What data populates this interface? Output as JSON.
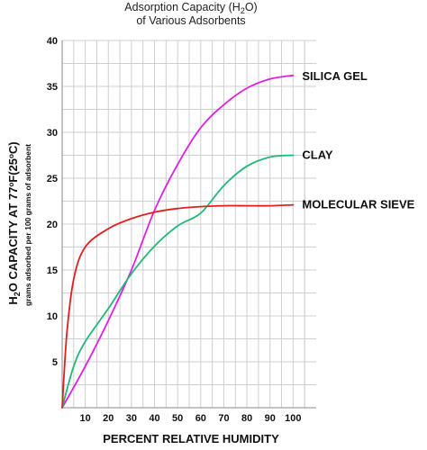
{
  "chart_data": {
    "type": "line",
    "title_line1": "Adsorption Capacity (H",
    "title_sub": "2",
    "title_line1_end": "O)",
    "title_line2": "of Various Adsorbents",
    "xlabel": "PERCENT RELATIVE HUMIDITY",
    "ylabel_part1": "H",
    "ylabel_sub": "2",
    "ylabel_part2": "O CAPACITY AT 77",
    "ylabel_sup": "o",
    "ylabel_part3": "F(25",
    "ylabel_sup2": "o",
    "ylabel_part4": "C)",
    "ylabel_secondary": "grams adsorbed per 100 grams of adsorbent",
    "xlim": [
      0,
      110
    ],
    "ylim": [
      0,
      40
    ],
    "x_ticks": [
      10,
      20,
      30,
      40,
      50,
      60,
      70,
      80,
      90,
      100
    ],
    "y_ticks": [
      5,
      10,
      15,
      20,
      25,
      30,
      35,
      40
    ],
    "grid": true,
    "series": [
      {
        "name": "SILICA GEL",
        "color": "#e020e0",
        "points": [
          [
            0,
            0
          ],
          [
            10,
            4.5
          ],
          [
            20,
            9.5
          ],
          [
            30,
            15
          ],
          [
            40,
            21.5
          ],
          [
            50,
            26.5
          ],
          [
            60,
            30.5
          ],
          [
            70,
            33
          ],
          [
            80,
            34.8
          ],
          [
            90,
            35.8
          ],
          [
            100,
            36.2
          ]
        ]
      },
      {
        "name": "CLAY",
        "color": "#1fb877",
        "points": [
          [
            0,
            0
          ],
          [
            5,
            4.5
          ],
          [
            10,
            7.2
          ],
          [
            20,
            10.8
          ],
          [
            30,
            14.6
          ],
          [
            40,
            17.6
          ],
          [
            50,
            19.8
          ],
          [
            60,
            21.2
          ],
          [
            70,
            24.2
          ],
          [
            80,
            26.3
          ],
          [
            90,
            27.3
          ],
          [
            100,
            27.5
          ]
        ]
      },
      {
        "name": "MOLECULAR SIEVE",
        "color": "#e02020",
        "points": [
          [
            0,
            0
          ],
          [
            2,
            8
          ],
          [
            5,
            14
          ],
          [
            10,
            17.5
          ],
          [
            20,
            19.5
          ],
          [
            30,
            20.6
          ],
          [
            40,
            21.3
          ],
          [
            50,
            21.7
          ],
          [
            60,
            21.9
          ],
          [
            70,
            22
          ],
          [
            80,
            22
          ],
          [
            90,
            22
          ],
          [
            100,
            22.1
          ]
        ]
      }
    ]
  }
}
